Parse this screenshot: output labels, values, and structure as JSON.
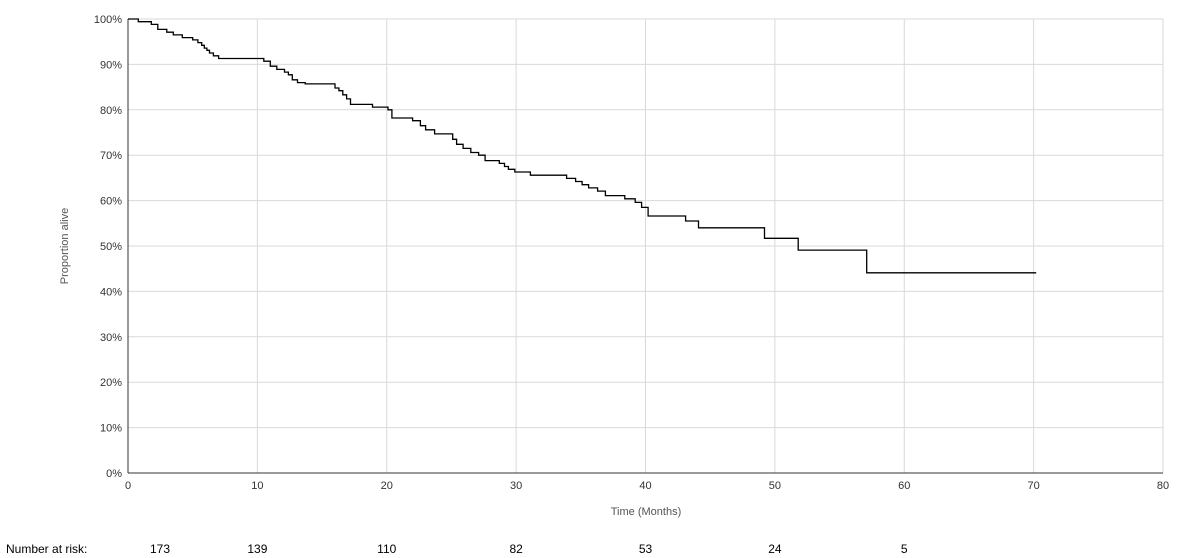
{
  "chart_data": {
    "type": "line",
    "title": "",
    "xlabel": "Time (Months)",
    "ylabel": "Proportion alive",
    "xlim": [
      0,
      80
    ],
    "ylim": [
      0,
      100
    ],
    "x_ticks": [
      0,
      10,
      20,
      30,
      40,
      50,
      60,
      70,
      80
    ],
    "y_ticks": [
      0,
      10,
      20,
      30,
      40,
      50,
      60,
      70,
      80,
      90,
      100
    ],
    "y_tick_suffix": "%",
    "grid": true,
    "line_color": "#000000",
    "series": [
      {
        "step": true,
        "points": [
          [
            0,
            100
          ],
          [
            0.8,
            99.4
          ],
          [
            1.8,
            98.8
          ],
          [
            2.3,
            97.7
          ],
          [
            3.0,
            97.1
          ],
          [
            3.5,
            96.5
          ],
          [
            4.2,
            95.9
          ],
          [
            5.0,
            95.4
          ],
          [
            5.4,
            94.8
          ],
          [
            5.7,
            94.2
          ],
          [
            5.9,
            93.6
          ],
          [
            6.1,
            93.1
          ],
          [
            6.3,
            92.5
          ],
          [
            6.6,
            91.9
          ],
          [
            7.0,
            91.3
          ],
          [
            10.5,
            90.7
          ],
          [
            11.0,
            89.6
          ],
          [
            11.5,
            88.9
          ],
          [
            12.1,
            88.3
          ],
          [
            12.4,
            87.7
          ],
          [
            12.7,
            86.6
          ],
          [
            13.1,
            86.0
          ],
          [
            13.7,
            85.7
          ],
          [
            16.0,
            84.8
          ],
          [
            16.3,
            84.2
          ],
          [
            16.6,
            83.3
          ],
          [
            16.9,
            82.4
          ],
          [
            17.2,
            81.2
          ],
          [
            18.9,
            80.6
          ],
          [
            20.1,
            80.0
          ],
          [
            20.4,
            78.2
          ],
          [
            22.0,
            77.6
          ],
          [
            22.6,
            76.5
          ],
          [
            23.0,
            75.6
          ],
          [
            23.7,
            74.7
          ],
          [
            25.1,
            73.5
          ],
          [
            25.4,
            72.4
          ],
          [
            25.9,
            71.5
          ],
          [
            26.5,
            70.6
          ],
          [
            27.1,
            70.0
          ],
          [
            27.6,
            68.8
          ],
          [
            28.7,
            68.2
          ],
          [
            29.1,
            67.5
          ],
          [
            29.4,
            66.9
          ],
          [
            29.9,
            66.3
          ],
          [
            31.1,
            65.6
          ],
          [
            33.9,
            64.9
          ],
          [
            34.6,
            64.2
          ],
          [
            35.1,
            63.5
          ],
          [
            35.6,
            62.8
          ],
          [
            36.3,
            62.1
          ],
          [
            36.9,
            61.1
          ],
          [
            38.4,
            60.4
          ],
          [
            39.2,
            59.6
          ],
          [
            39.7,
            58.5
          ],
          [
            40.2,
            56.6
          ],
          [
            43.1,
            55.5
          ],
          [
            44.1,
            54.0
          ],
          [
            49.2,
            51.7
          ],
          [
            51.8,
            49.1
          ],
          [
            57.1,
            44.1
          ],
          [
            70.2,
            44.1
          ]
        ]
      }
    ],
    "risk_table": {
      "label": "Number at risk:",
      "times": [
        0,
        10,
        20,
        30,
        40,
        50,
        60
      ],
      "values": [
        "173",
        "139",
        "110",
        "82",
        "53",
        "24",
        "5"
      ]
    }
  }
}
